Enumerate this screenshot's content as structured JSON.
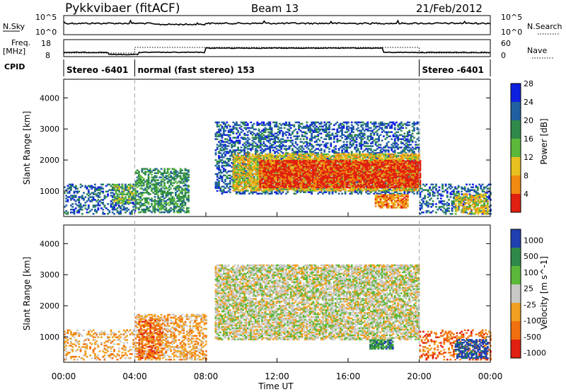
{
  "header": {
    "station": "Pykkvibaer (fitACF)",
    "beam": "Beam 13",
    "date": "21/Feb/2012"
  },
  "top_panels": {
    "nsky_label": "N.Sky",
    "nsky_ticks": [
      "10^5",
      "10^0"
    ],
    "nsearch_label": "N.Search",
    "nsearch_ticks": [
      "10^5",
      "10^0"
    ],
    "freq_label": "Freq.",
    "freq_unit": "[MHz]",
    "freq_ticks": [
      "18",
      "8"
    ],
    "nave_label": "Nave",
    "nave_ticks": [
      "60",
      "0"
    ],
    "cpid_label": "CPID",
    "cpid_segments": [
      {
        "label": "Stereo -6401",
        "start": 0,
        "end": 4
      },
      {
        "label": "normal (fast stereo) 153",
        "start": 4,
        "end": 20
      },
      {
        "label": "Stereo -6401",
        "start": 20,
        "end": 24
      }
    ]
  },
  "chart_data": [
    {
      "type": "heatmap",
      "name": "power",
      "ylabel": "Slant Range [km]",
      "ylim": [
        180,
        4600
      ],
      "yticks": [
        "1000",
        "2000",
        "3000",
        "4000"
      ],
      "ytick_values": [
        1000,
        2000,
        3000,
        4000
      ],
      "xlim": [
        0,
        24
      ],
      "colorbar_label": "Power [dB]",
      "colorbar_ticks": [
        "4",
        "8",
        "12",
        "16",
        "20",
        "24",
        "28"
      ],
      "colorbar_colors": [
        "#1020e0",
        "#2060a0",
        "#2f8a4a",
        "#5cb83a",
        "#e8c020",
        "#f08a10",
        "#e02010"
      ],
      "regions": [
        {
          "t0": 0.0,
          "t1": 4.0,
          "r0": 250,
          "r1": 1200,
          "level": 1,
          "density": 0.35
        },
        {
          "t0": 2.8,
          "t1": 4.0,
          "r0": 600,
          "r1": 1200,
          "level": 3,
          "density": 0.5
        },
        {
          "t0": 4.0,
          "t1": 7.0,
          "r0": 300,
          "r1": 1700,
          "level": 2,
          "density": 0.55
        },
        {
          "t0": 8.5,
          "t1": 20.0,
          "r0": 900,
          "r1": 3200,
          "level": 1,
          "density": 0.45
        },
        {
          "t0": 9.5,
          "t1": 20.0,
          "r0": 1000,
          "r1": 2200,
          "level": 4,
          "density": 0.7
        },
        {
          "t0": 11.0,
          "t1": 20.0,
          "r0": 1100,
          "r1": 2000,
          "level": 6,
          "density": 0.75
        },
        {
          "t0": 17.5,
          "t1": 19.3,
          "r0": 450,
          "r1": 900,
          "level": 5,
          "density": 0.8
        },
        {
          "t0": 20.0,
          "t1": 24.0,
          "r0": 250,
          "r1": 1200,
          "level": 1,
          "density": 0.35
        },
        {
          "t0": 22.0,
          "t1": 23.8,
          "r0": 250,
          "r1": 900,
          "level": 4,
          "density": 0.55
        }
      ]
    },
    {
      "type": "heatmap",
      "name": "velocity",
      "ylabel": "Slant Range [km]",
      "ylim": [
        180,
        4600
      ],
      "yticks": [
        "1000",
        "2000",
        "3000",
        "4000"
      ],
      "ytick_values": [
        1000,
        2000,
        3000,
        4000
      ],
      "xlim": [
        0,
        24
      ],
      "colorbar_label": "Velocity [m s^-1]",
      "colorbar_ticks": [
        "1000",
        "500",
        "100",
        "25",
        "-25",
        "-100",
        "-500",
        "-1000"
      ],
      "colorbar_colors": [
        "#2040b0",
        "#2f8a4a",
        "#5cb83a",
        "#c8c8c4",
        "#f0a020",
        "#f07010",
        "#e02010"
      ],
      "regions": [
        {
          "t0": 0.0,
          "t1": 4.0,
          "r0": 250,
          "r1": 1200,
          "level": 4,
          "density": 0.3
        },
        {
          "t0": 4.0,
          "t1": 8.0,
          "r0": 250,
          "r1": 1700,
          "level": 4,
          "density": 0.45
        },
        {
          "t0": 4.2,
          "t1": 5.5,
          "r0": 300,
          "r1": 1600,
          "level": 5,
          "density": 0.5
        },
        {
          "t0": 8.5,
          "t1": 20.0,
          "r0": 900,
          "r1": 3300,
          "level": 3,
          "density": 0.7
        },
        {
          "t0": 17.2,
          "t1": 18.5,
          "r0": 600,
          "r1": 900,
          "level": 1,
          "density": 0.85
        },
        {
          "t0": 20.0,
          "t1": 24.0,
          "r0": 250,
          "r1": 1200,
          "level": 5,
          "density": 0.3
        },
        {
          "t0": 22.0,
          "t1": 23.8,
          "r0": 300,
          "r1": 900,
          "level": 0,
          "density": 0.6
        }
      ]
    }
  ],
  "xaxis": {
    "label": "Time UT",
    "ticks": [
      "00:00",
      "04:00",
      "08:00",
      "12:00",
      "16:00",
      "20:00",
      "00:00"
    ],
    "tick_values": [
      0,
      4,
      8,
      12,
      16,
      20,
      24
    ]
  }
}
